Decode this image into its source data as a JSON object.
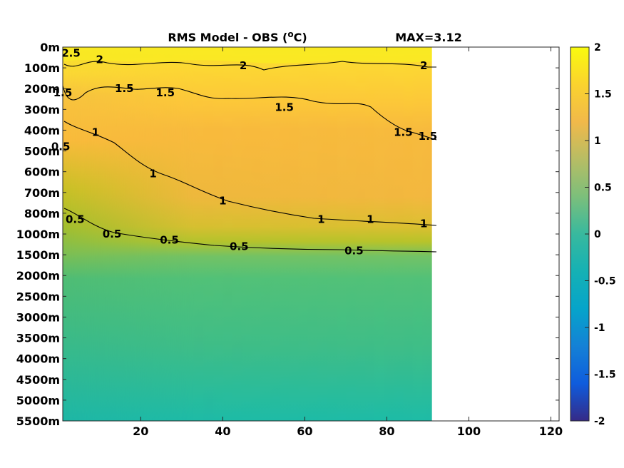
{
  "chart_data": {
    "type": "heatmap",
    "title": "RMS Model - OBS",
    "title_unit_prefix": "(",
    "title_unit_sup": "o",
    "title_unit_suffix": "C)",
    "max_label": "MAX=3.12",
    "xlim": [
      1,
      122
    ],
    "x_ticks": [
      20,
      40,
      60,
      80,
      100,
      120
    ],
    "data_extent_x": [
      1,
      91
    ],
    "depth_levels": [
      "0m",
      "100m",
      "200m",
      "300m",
      "400m",
      "500m",
      "600m",
      "700m",
      "800m",
      "1000m",
      "1500m",
      "2000m",
      "2500m",
      "3000m",
      "3500m",
      "4000m",
      "4500m",
      "5000m",
      "5500m"
    ],
    "colorbar": {
      "min": -2,
      "max": 2,
      "ticks": [
        "2",
        "1.5",
        "1",
        "0.5",
        "0",
        "-0.5",
        "-1",
        "-1.5",
        "-2"
      ],
      "colormap": "parula"
    },
    "contour_labels": [
      {
        "text": "2.5",
        "x": 3,
        "y": 0.3
      },
      {
        "text": "2",
        "x": 10,
        "y": 0.6
      },
      {
        "text": "2",
        "x": 45,
        "y": 0.9
      },
      {
        "text": "2",
        "x": 89,
        "y": 0.9
      },
      {
        "text": "1.5",
        "x": 1,
        "y": 2.2
      },
      {
        "text": "1.5",
        "x": 16,
        "y": 2.0
      },
      {
        "text": "1.5",
        "x": 26,
        "y": 2.2
      },
      {
        "text": "1.5",
        "x": 55,
        "y": 2.9
      },
      {
        "text": "1.5",
        "x": 84,
        "y": 4.1
      },
      {
        "text": "1.5",
        "x": 90,
        "y": 4.3
      },
      {
        "text": "0.5",
        "x": 0.5,
        "y": 4.8
      },
      {
        "text": "1",
        "x": 9,
        "y": 4.1
      },
      {
        "text": "1",
        "x": 23,
        "y": 6.1
      },
      {
        "text": "1",
        "x": 40,
        "y": 7.4
      },
      {
        "text": "1",
        "x": 64,
        "y": 8.3
      },
      {
        "text": "1",
        "x": 76,
        "y": 8.3
      },
      {
        "text": "1",
        "x": 89,
        "y": 8.5
      },
      {
        "text": "0.5",
        "x": 4,
        "y": 8.3
      },
      {
        "text": "0.5",
        "x": 13,
        "y": 9.0
      },
      {
        "text": "0.5",
        "x": 27,
        "y": 9.3
      },
      {
        "text": "0.5",
        "x": 44,
        "y": 9.6
      },
      {
        "text": "0.5",
        "x": 72,
        "y": 9.8
      }
    ]
  }
}
